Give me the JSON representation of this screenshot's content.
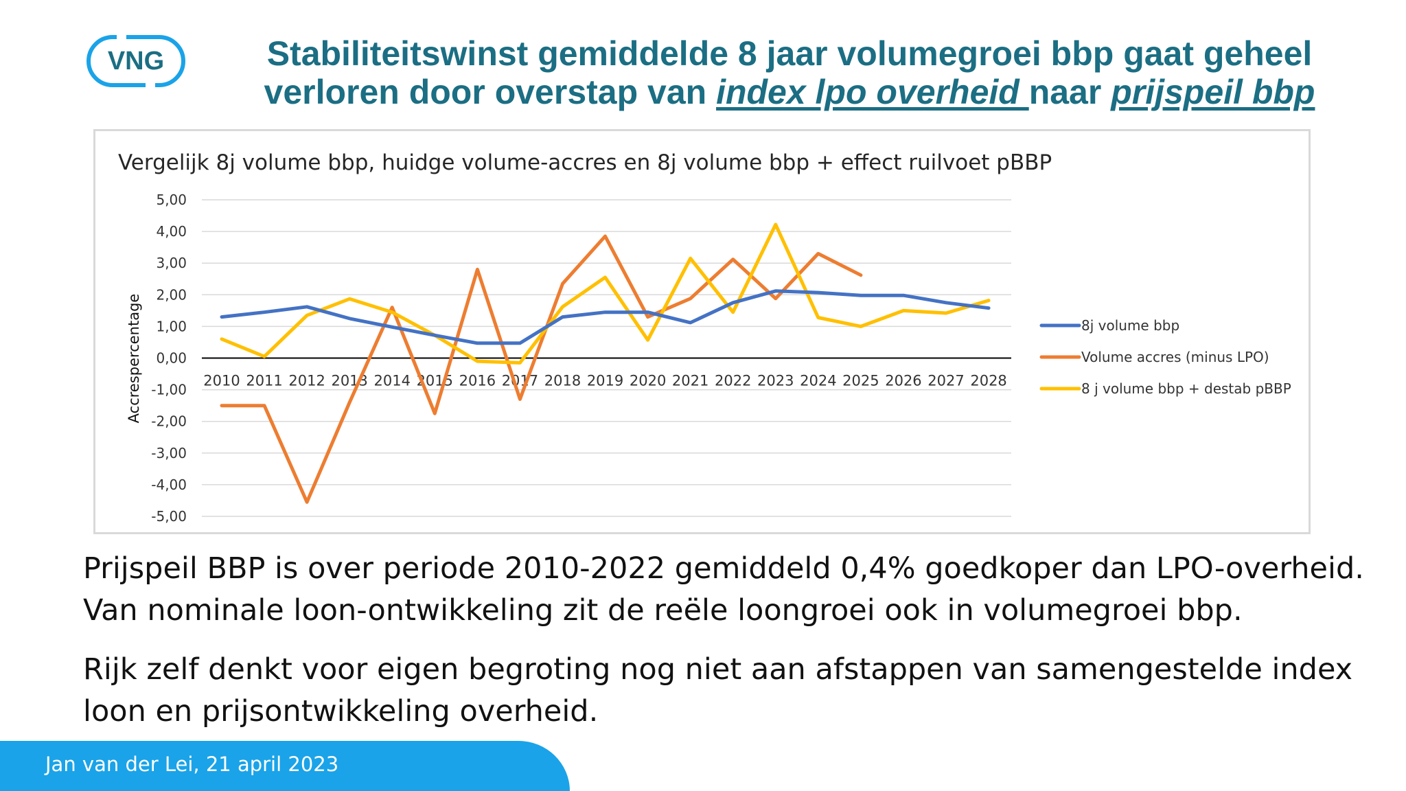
{
  "logo": {
    "text": "VNG"
  },
  "slide": {
    "title_line1": "Stabiliteitswinst gemiddelde 8 jaar volumegroei bbp gaat geheel",
    "title_line2_a": "verloren door overstap van ",
    "title_line2_b": "index lpo overheid ",
    "title_line2_c": "naar ",
    "title_line2_d": "prijspeil bbp",
    "paragraph1_line1": "Prijspeil BBP is over periode 2010-2022 gemiddeld 0,4% goedkoper dan LPO-overheid.",
    "paragraph1_line2": "Van nominale loon-ontwikkeling zit de reële loongroei ook in volumegroei bbp.",
    "paragraph2_line1": "Rijk zelf denkt voor eigen begroting nog niet aan afstappen van samengestelde index",
    "paragraph2_line2": "loon en prijsontwikkeling overheid.",
    "footer": "Jan van der Lei, 21 april 2023"
  },
  "colors": {
    "title": "#1b6e83",
    "footer_band": "#1aa3e8",
    "series_blue": "#4472c4",
    "series_orange": "#ed7d31",
    "series_yellow": "#ffc000"
  },
  "chart_data": {
    "type": "line",
    "title": "Vergelijk 8j volume bbp, huidge volume-accres en 8j volume bbp + effect ruilvoet pBBP",
    "ylabel": "Accrespercentage",
    "xlabel": "",
    "ylim": [
      -5,
      5
    ],
    "grid": true,
    "legend_position": "right",
    "y_ticks": [
      "5,00",
      "4,00",
      "3,00",
      "2,00",
      "1,00",
      "0,00",
      "-1,00",
      "-2,00",
      "-3,00",
      "-4,00",
      "-5,00"
    ],
    "categories": [
      "2010",
      "2011",
      "2012",
      "2013",
      "2014",
      "2015",
      "2016",
      "2017",
      "2018",
      "2019",
      "2020",
      "2021",
      "2022",
      "2023",
      "2024",
      "2025",
      "2026",
      "2027",
      "2028"
    ],
    "series": [
      {
        "name": "8j volume bbp",
        "color": "#4472c4",
        "values": [
          1.3,
          1.45,
          1.62,
          1.25,
          0.98,
          0.72,
          0.47,
          0.47,
          1.3,
          1.45,
          1.45,
          1.12,
          1.75,
          2.12,
          2.07,
          1.98,
          1.98,
          1.75,
          1.58
        ]
      },
      {
        "name": "Volume accres (minus LPO)",
        "color": "#ed7d31",
        "values": [
          -1.5,
          -1.5,
          -4.55,
          -1.4,
          1.6,
          -1.75,
          2.8,
          -1.3,
          2.35,
          3.85,
          1.3,
          1.88,
          3.12,
          1.88,
          3.3,
          2.62,
          null,
          null,
          null
        ]
      },
      {
        "name": "8 j volume bbp + destab pBBP",
        "color": "#ffc000",
        "values": [
          0.6,
          0.05,
          1.35,
          1.87,
          1.45,
          0.72,
          -0.1,
          -0.15,
          1.62,
          2.55,
          0.57,
          3.15,
          1.45,
          4.22,
          1.28,
          1.0,
          1.5,
          1.42,
          1.82
        ]
      }
    ]
  }
}
